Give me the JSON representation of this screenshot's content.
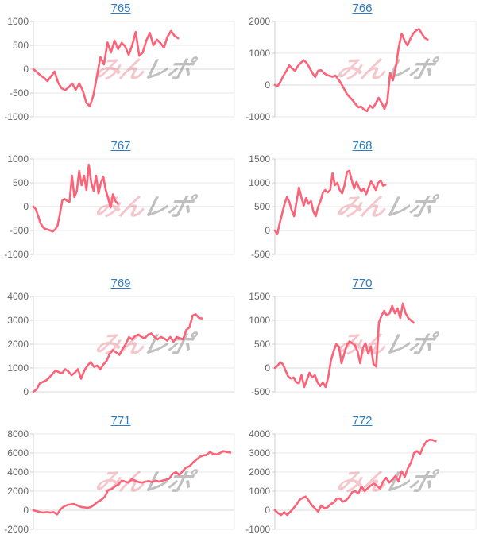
{
  "styles": {
    "line_color": "#fa6378",
    "link_color": "#2b7cc4",
    "grid_color": "#eaeaea",
    "zero_line_color": "#d8d8d8",
    "axis_color": "#cccccc",
    "right_border_color": "#ededed",
    "tick_label_color": "#666666"
  },
  "watermark": {
    "pink_text": "みん",
    "gray_text": "レポ",
    "pink_color": "rgba(232,118,133,0.42)",
    "gray_color": "rgba(140,140,140,0.55)"
  },
  "chart_data": [
    {
      "type": "line",
      "title": "765",
      "ylim": [
        -1000,
        1000
      ],
      "ytick_step": 500,
      "x_end_fraction": 0.72,
      "values": [
        0,
        -60,
        -130,
        -180,
        -250,
        -150,
        -50,
        -280,
        -400,
        -440,
        -380,
        -300,
        -430,
        -300,
        -450,
        -700,
        -780,
        -550,
        -150,
        250,
        100,
        560,
        350,
        600,
        420,
        550,
        480,
        300,
        500,
        780,
        280,
        350,
        600,
        760,
        500,
        620,
        550,
        450,
        680,
        800,
        700,
        650
      ]
    },
    {
      "type": "line",
      "title": "766",
      "ylim": [
        -1000,
        2000
      ],
      "ytick_step": 1000,
      "x_end_fraction": 0.76,
      "values": [
        0,
        -30,
        120,
        300,
        450,
        620,
        520,
        450,
        600,
        700,
        780,
        700,
        550,
        380,
        250,
        450,
        470,
        380,
        320,
        290,
        260,
        300,
        180,
        50,
        -120,
        -280,
        -380,
        -480,
        -600,
        -700,
        -680,
        -780,
        -820,
        -650,
        -720,
        -580,
        -400,
        -550,
        -750,
        -520,
        380,
        150,
        600,
        1200,
        1620,
        1400,
        1250,
        1450,
        1620,
        1720,
        1760,
        1620,
        1480,
        1430
      ]
    },
    {
      "type": "line",
      "title": "767",
      "ylim": [
        -1000,
        1000
      ],
      "ytick_step": 500,
      "x_end_fraction": 0.42,
      "values": [
        0,
        -50,
        -200,
        -350,
        -430,
        -470,
        -480,
        -500,
        -520,
        -480,
        -400,
        -150,
        130,
        160,
        120,
        100,
        650,
        200,
        320,
        750,
        450,
        650,
        350,
        880,
        500,
        330,
        650,
        280,
        500,
        630,
        350,
        180,
        -20,
        260,
        120,
        60
      ]
    },
    {
      "type": "line",
      "title": "768",
      "ylim": [
        -500,
        1500
      ],
      "ytick_step": 500,
      "x_end_fraction": 0.55,
      "values": [
        0,
        -80,
        150,
        350,
        550,
        700,
        600,
        420,
        300,
        600,
        900,
        700,
        520,
        680,
        560,
        620,
        400,
        300,
        500,
        620,
        800,
        850,
        800,
        850,
        1200,
        950,
        1000,
        850,
        780,
        950,
        1230,
        1250,
        1050,
        880,
        1020,
        900,
        820,
        880,
        760,
        900,
        1030,
        950,
        850,
        1000,
        1050,
        940,
        960
      ]
    },
    {
      "type": "line",
      "title": "769",
      "ylim": [
        0,
        4000
      ],
      "ytick_step": 1000,
      "x_end_fraction": 0.84,
      "values": [
        0,
        100,
        350,
        420,
        480,
        600,
        750,
        900,
        820,
        780,
        950,
        850,
        700,
        800,
        950,
        550,
        900,
        1100,
        1250,
        1050,
        1100,
        950,
        1150,
        1300,
        1600,
        1750,
        1650,
        1550,
        1800,
        2000,
        2300,
        2200,
        2350,
        2400,
        2300,
        2250,
        2400,
        2450,
        2300,
        2200,
        2300,
        2250,
        2150,
        2300,
        2100,
        2300,
        2250,
        2200,
        2600,
        2700,
        3200,
        3250,
        3100,
        3080
      ]
    },
    {
      "type": "line",
      "title": "770",
      "ylim": [
        -500,
        1500
      ],
      "ytick_step": 500,
      "x_end_fraction": 0.69,
      "values": [
        0,
        50,
        120,
        80,
        -50,
        -180,
        -220,
        -200,
        -300,
        -320,
        -150,
        -400,
        -250,
        -100,
        -200,
        -150,
        -300,
        -380,
        -300,
        -400,
        -200,
        150,
        350,
        500,
        450,
        100,
        300,
        480,
        560,
        520,
        480,
        350,
        100,
        420,
        520,
        300,
        450,
        80,
        30,
        950,
        1100,
        1200,
        1100,
        1150,
        1300,
        1150,
        1250,
        1050,
        1350,
        1150,
        1050,
        1000,
        950
      ]
    },
    {
      "type": "line",
      "title": "771",
      "ylim": [
        -2000,
        8000
      ],
      "ytick_step": 2000,
      "x_end_fraction": 0.98,
      "values": [
        0,
        -100,
        -200,
        -250,
        -200,
        -250,
        -200,
        -450,
        100,
        400,
        550,
        620,
        650,
        500,
        350,
        300,
        250,
        350,
        600,
        900,
        1100,
        1400,
        2100,
        2200,
        2500,
        2700,
        3100,
        3000,
        2900,
        3250,
        3100,
        2950,
        2900,
        3000,
        3050,
        2950,
        3100,
        3000,
        3100,
        3200,
        3300,
        3800,
        4000,
        3700,
        4100,
        4500,
        4600,
        5000,
        5300,
        5600,
        5750,
        5800,
        6100,
        5900,
        5850,
        6000,
        6200,
        6100,
        6050
      ]
    },
    {
      "type": "line",
      "title": "772",
      "ylim": [
        -1000,
        4000
      ],
      "ytick_step": 1000,
      "x_end_fraction": 0.8,
      "values": [
        0,
        -150,
        -250,
        -100,
        -250,
        -80,
        100,
        300,
        550,
        650,
        720,
        500,
        250,
        100,
        -80,
        250,
        100,
        150,
        320,
        400,
        600,
        620,
        450,
        520,
        700,
        950,
        1000,
        880,
        1250,
        1000,
        1150,
        1300,
        1400,
        1280,
        1150,
        1500,
        1700,
        1450,
        1600,
        1800,
        1500,
        2050,
        1750,
        2200,
        2500,
        3000,
        3100,
        2950,
        3350,
        3600,
        3700,
        3680,
        3620
      ]
    }
  ]
}
